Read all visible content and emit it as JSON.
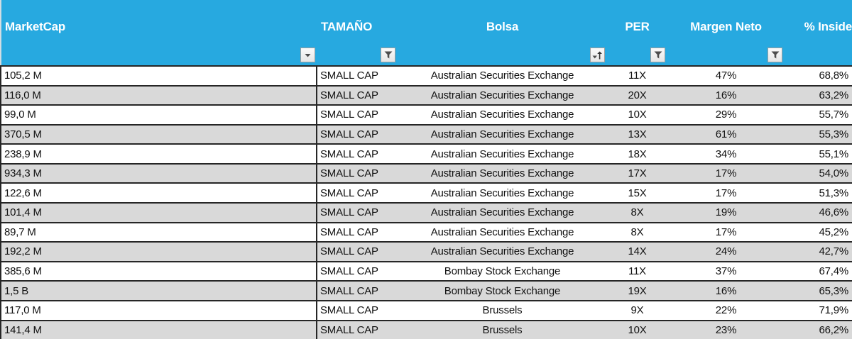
{
  "app": {
    "type": "spreadsheet-filtered-table"
  },
  "colors": {
    "header_bg": "#27A9E0",
    "header_text": "#FFFFFF",
    "row_bg": "#FFFFFF",
    "row_alt_bg": "#D9D9D9",
    "row_border": "#262626",
    "cell_text": "#111111",
    "filter_button_bg": "#FBFBFB",
    "filter_button_border": "#9E9E9E",
    "filter_icon": "#4D4D4D"
  },
  "table": {
    "columns": [
      {
        "label": "MarketCap",
        "align": "left",
        "filter_icon": "dropdown-arrow"
      },
      {
        "label": "TAMAÑO",
        "align": "left",
        "filter_icon": "funnel"
      },
      {
        "label": "Bolsa",
        "align": "center",
        "filter_icon": "sort-ascending"
      },
      {
        "label": "PER",
        "align": "center",
        "filter_icon": "funnel"
      },
      {
        "label": "Margen Neto",
        "align": "center",
        "filter_icon": "funnel"
      },
      {
        "label": "% Inside",
        "align": "right",
        "filter_icon": "none"
      }
    ],
    "rows": [
      [
        "105,2 M",
        "SMALL CAP",
        "Australian Securities Exchange",
        "11X",
        "47%",
        "68,8%"
      ],
      [
        "116,0 M",
        "SMALL CAP",
        "Australian Securities Exchange",
        "20X",
        "16%",
        "63,2%"
      ],
      [
        "99,0 M",
        "SMALL CAP",
        "Australian Securities Exchange",
        "10X",
        "29%",
        "55,7%"
      ],
      [
        "370,5 M",
        "SMALL CAP",
        "Australian Securities Exchange",
        "13X",
        "61%",
        "55,3%"
      ],
      [
        "238,9 M",
        "SMALL CAP",
        "Australian Securities Exchange",
        "18X",
        "34%",
        "55,1%"
      ],
      [
        "934,3 M",
        "SMALL CAP",
        "Australian Securities Exchange",
        "17X",
        "17%",
        "54,0%"
      ],
      [
        "122,6 M",
        "SMALL CAP",
        "Australian Securities Exchange",
        "15X",
        "17%",
        "51,3%"
      ],
      [
        "101,4 M",
        "SMALL CAP",
        "Australian Securities Exchange",
        "8X",
        "19%",
        "46,6%"
      ],
      [
        "89,7 M",
        "SMALL CAP",
        "Australian Securities Exchange",
        "8X",
        "17%",
        "45,2%"
      ],
      [
        "192,2 M",
        "SMALL CAP",
        "Australian Securities Exchange",
        "14X",
        "24%",
        "42,7%"
      ],
      [
        "385,6 M",
        "SMALL CAP",
        "Bombay Stock Exchange",
        "11X",
        "37%",
        "67,4%"
      ],
      [
        "1,5 B",
        "SMALL CAP",
        "Bombay Stock Exchange",
        "19X",
        "16%",
        "65,3%"
      ],
      [
        "117,0 M",
        "SMALL CAP",
        "Brussels",
        "9X",
        "22%",
        "71,9%"
      ],
      [
        "141,4 M",
        "SMALL CAP",
        "Brussels",
        "10X",
        "23%",
        "66,2%"
      ]
    ]
  }
}
